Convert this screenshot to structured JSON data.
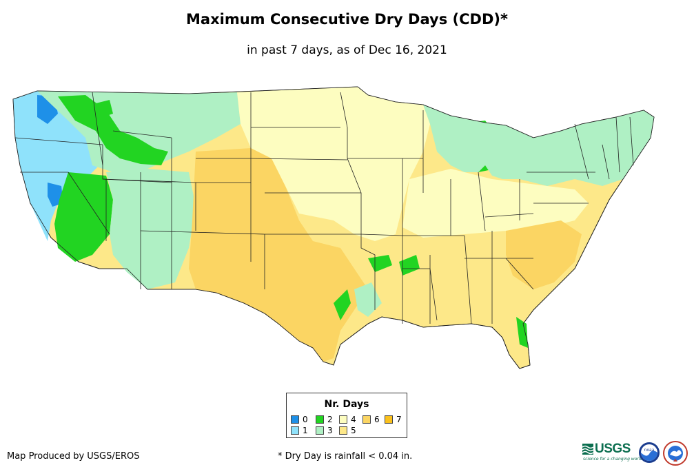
{
  "title": "Maximum Consecutive Dry Days (CDD)*",
  "subtitle": "in past 7 days, as of Dec 16, 2021",
  "legend": {
    "title": "Nr. Days",
    "items": [
      {
        "label": "0",
        "color": "#1e90e8"
      },
      {
        "label": "1",
        "color": "#8fe2fb"
      },
      {
        "label": "2",
        "color": "#22d422"
      },
      {
        "label": "3",
        "color": "#aff0c4"
      },
      {
        "label": "4",
        "color": "#fdfdc0"
      },
      {
        "label": "5",
        "color": "#fde889"
      },
      {
        "label": "6",
        "color": "#fbd563"
      },
      {
        "label": "7",
        "color": "#fbc11c"
      }
    ]
  },
  "footer": {
    "producer": "Map Produced by USGS/EROS",
    "note": "* Dry Day is rainfall < 0.04 in."
  },
  "logos": {
    "usgs": "USGS",
    "usgs_tagline": "science for a changing world",
    "noaa": "noaa"
  }
}
